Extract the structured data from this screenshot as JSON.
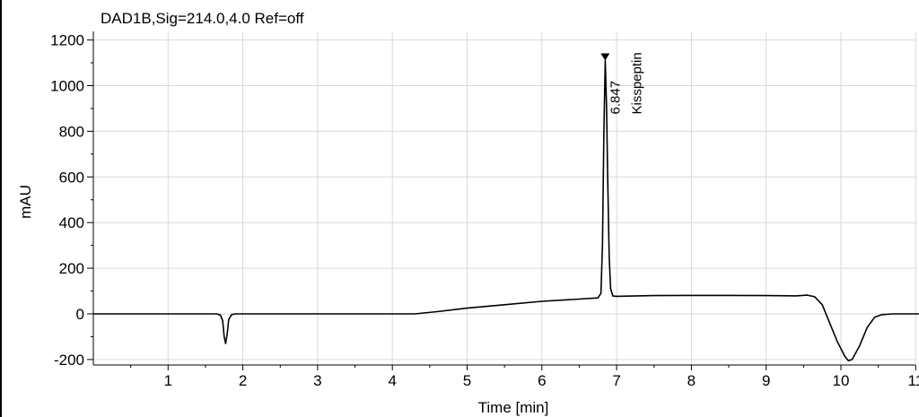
{
  "chart_data": {
    "type": "line",
    "title": "DAD1B,Sig=214.0,4.0  Ref=off",
    "xlabel": "Time [min]",
    "ylabel": "mAU",
    "xlim": [
      0,
      11
    ],
    "ylim": [
      -220,
      1220
    ],
    "x_ticks": [
      1,
      2,
      3,
      4,
      5,
      6,
      7,
      8,
      9,
      10,
      11
    ],
    "y_ticks": [
      -200,
      0,
      200,
      400,
      600,
      800,
      1000,
      1200
    ],
    "grid": true,
    "series": [
      {
        "color": "#000000",
        "points": [
          [
            0,
            0
          ],
          [
            1.65,
            0
          ],
          [
            1.7,
            -5
          ],
          [
            1.73,
            -30
          ],
          [
            1.75,
            -100
          ],
          [
            1.77,
            -130
          ],
          [
            1.79,
            -90
          ],
          [
            1.81,
            -25
          ],
          [
            1.85,
            -3
          ],
          [
            1.9,
            0
          ],
          [
            4.3,
            0
          ],
          [
            4.6,
            10
          ],
          [
            5.0,
            25
          ],
          [
            5.5,
            40
          ],
          [
            6.0,
            55
          ],
          [
            6.5,
            65
          ],
          [
            6.75,
            70
          ],
          [
            6.79,
            90
          ],
          [
            6.81,
            300
          ],
          [
            6.83,
            800
          ],
          [
            6.847,
            1110
          ],
          [
            6.865,
            900
          ],
          [
            6.88,
            600
          ],
          [
            6.9,
            250
          ],
          [
            6.92,
            110
          ],
          [
            6.95,
            78
          ],
          [
            7.0,
            77
          ],
          [
            7.5,
            80
          ],
          [
            8.0,
            81
          ],
          [
            8.5,
            81
          ],
          [
            9.0,
            80
          ],
          [
            9.4,
            79
          ],
          [
            9.55,
            82
          ],
          [
            9.65,
            75
          ],
          [
            9.75,
            40
          ],
          [
            9.85,
            -40
          ],
          [
            9.95,
            -120
          ],
          [
            10.05,
            -185
          ],
          [
            10.1,
            -205
          ],
          [
            10.15,
            -200
          ],
          [
            10.25,
            -140
          ],
          [
            10.35,
            -60
          ],
          [
            10.45,
            -15
          ],
          [
            10.55,
            -3
          ],
          [
            10.7,
            0
          ],
          [
            11.1,
            0
          ]
        ]
      }
    ],
    "annotations": [
      {
        "x": 6.847,
        "y": 1110,
        "retention_time": "6.847",
        "compound": "Kisspeptin"
      }
    ]
  }
}
